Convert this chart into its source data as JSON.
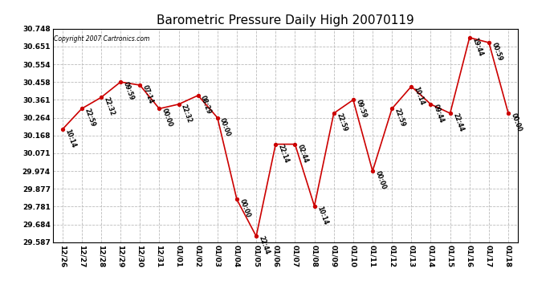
{
  "title": "Barometric Pressure Daily High 20070119",
  "copyright": "Copyright 2007 Cartronics.com",
  "x_labels": [
    "12/26",
    "12/27",
    "12/28",
    "12/29",
    "12/30",
    "12/31",
    "01/01",
    "01/02",
    "01/03",
    "01/04",
    "01/05",
    "01/06",
    "01/07",
    "01/08",
    "01/09",
    "01/10",
    "01/11",
    "01/12",
    "01/13",
    "01/14",
    "01/15",
    "01/16",
    "01/17",
    "01/18"
  ],
  "y_values": [
    30.2,
    30.313,
    30.374,
    30.458,
    30.441,
    30.313,
    30.337,
    30.385,
    30.264,
    29.82,
    29.62,
    30.12,
    30.12,
    29.784,
    30.288,
    30.361,
    29.974,
    30.313,
    30.434,
    30.337,
    30.288,
    30.699,
    30.672,
    30.288
  ],
  "annotations": [
    "10:14",
    "22:59",
    "22:32",
    "09:59",
    "07:14",
    "00:00",
    "22:32",
    "08:29",
    "00:00",
    "00:00",
    "22:44",
    "22:14",
    "02:44",
    "10:14",
    "22:59",
    "09:59",
    "00:00",
    "22:59",
    "10:14",
    "09:44",
    "22:44",
    "19:44",
    "00:59",
    "00:00"
  ],
  "line_color": "#cc0000",
  "marker_color": "#cc0000",
  "bg_color": "#ffffff",
  "grid_color": "#bbbbbb",
  "title_fontsize": 11,
  "ylabel_values": [
    29.587,
    29.684,
    29.781,
    29.877,
    29.974,
    30.071,
    30.168,
    30.264,
    30.361,
    30.458,
    30.554,
    30.651,
    30.748
  ],
  "ylim_min": 29.587,
  "ylim_max": 30.748
}
